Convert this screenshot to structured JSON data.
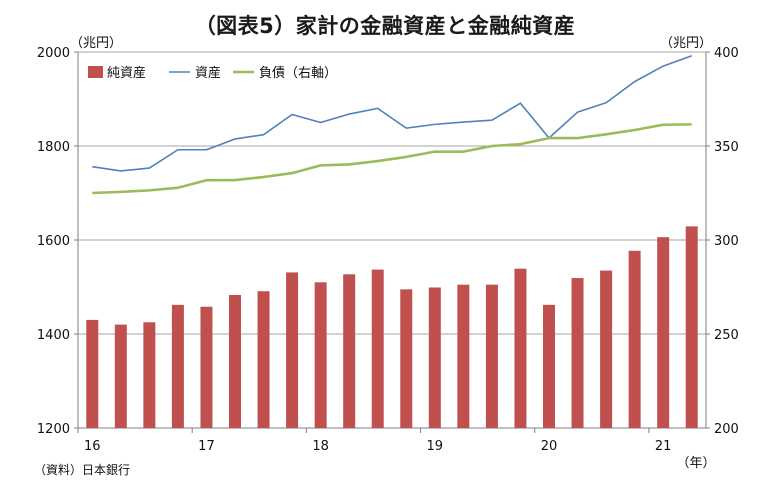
{
  "title": "（図表5）家計の金融資産と金融純資産",
  "unit_left": "（兆円）",
  "unit_right": "（兆円）",
  "source": "（資料）日本銀行",
  "x_unit": "（年）",
  "colors": {
    "bar": "#c0504d",
    "asset_line": "#4f81bd",
    "liability_line": "#9bbb59",
    "grid": "#a6a6a6"
  },
  "chart_data": {
    "type": "bar+line",
    "title": "（図表5）家計の金融資産と金融純資産",
    "quarters": [
      "16Q1",
      "16Q2",
      "16Q3",
      "16Q4",
      "17Q1",
      "17Q2",
      "17Q3",
      "17Q4",
      "18Q1",
      "18Q2",
      "18Q3",
      "18Q4",
      "19Q1",
      "19Q2",
      "19Q3",
      "19Q4",
      "20Q1",
      "20Q2",
      "20Q3",
      "20Q4",
      "21Q1",
      "21Q2"
    ],
    "x_tick_labels": [
      {
        "label": "16",
        "index": 0
      },
      {
        "label": "17",
        "index": 4
      },
      {
        "label": "18",
        "index": 8
      },
      {
        "label": "19",
        "index": 12
      },
      {
        "label": "20",
        "index": 16
      },
      {
        "label": "21",
        "index": 20
      }
    ],
    "left_axis": {
      "ylim": [
        1200,
        2000
      ],
      "ticks": [
        1200,
        1400,
        1600,
        1800,
        2000
      ]
    },
    "right_axis": {
      "ylim": [
        200,
        400
      ],
      "ticks": [
        200,
        250,
        300,
        350,
        400
      ]
    },
    "series": [
      {
        "name": "純資産",
        "type": "bar",
        "axis": "left",
        "values": [
          1430,
          1420,
          1425,
          1462,
          1458,
          1483,
          1491,
          1531,
          1510,
          1527,
          1537,
          1495,
          1499,
          1505,
          1505,
          1539,
          1462,
          1519,
          1535,
          1577,
          1606,
          1629
        ]
      },
      {
        "name": "資産",
        "type": "line",
        "axis": "left",
        "values": [
          1756,
          1747,
          1753,
          1792,
          1792,
          1815,
          1824,
          1867,
          1850,
          1868,
          1880,
          1838,
          1846,
          1851,
          1855,
          1891,
          1817,
          1872,
          1892,
          1937,
          1970,
          1992
        ]
      },
      {
        "name": "負債（右軸）",
        "type": "line",
        "axis": "right",
        "values": [
          325.0,
          325.6,
          326.4,
          327.8,
          331.8,
          331.9,
          333.5,
          335.6,
          339.7,
          340.2,
          342.0,
          344.2,
          347.0,
          347.0,
          350.0,
          351.0,
          354.2,
          354.2,
          356.2,
          358.5,
          361.3,
          361.5
        ]
      }
    ]
  }
}
